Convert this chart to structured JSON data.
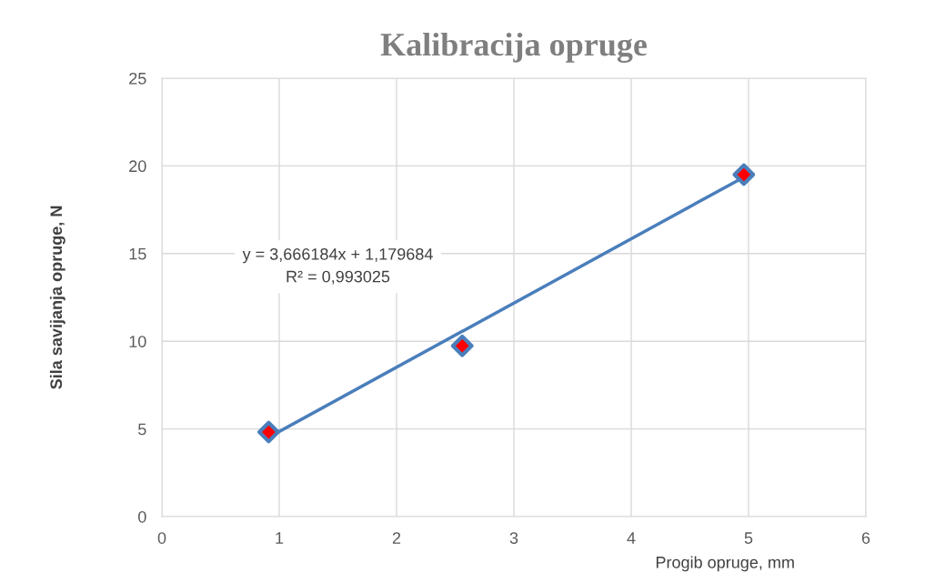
{
  "chart_data": {
    "type": "scatter",
    "title": "Kalibracija opruge",
    "xlabel": "Progib opruge, mm",
    "ylabel": "Sila savijanja opruge, N",
    "xlim": [
      0,
      6
    ],
    "xticks": [
      0,
      1,
      2,
      3,
      4,
      5,
      6
    ],
    "ylim": [
      0,
      25
    ],
    "yticks": [
      0,
      5,
      10,
      15,
      20,
      25
    ],
    "grid": true,
    "legend": false,
    "series": [
      {
        "type": "line",
        "color": "#4a7ebb",
        "x": [
          0.91,
          4.96
        ],
        "values": [
          4.52,
          19.36
        ],
        "marker": "none",
        "line_style": "solid"
      },
      {
        "color": "#4a7ebb",
        "colors": [
          "#ff0000",
          "#ff0000",
          "#ff0000"
        ],
        "x": [
          0.91,
          2.56,
          4.96
        ],
        "values": [
          4.82,
          9.74,
          19.5
        ],
        "marker": "diamond"
      }
    ],
    "annotations": [
      "y = 3,666184x + 1,179684\nR² = 0,993025"
    ]
  }
}
